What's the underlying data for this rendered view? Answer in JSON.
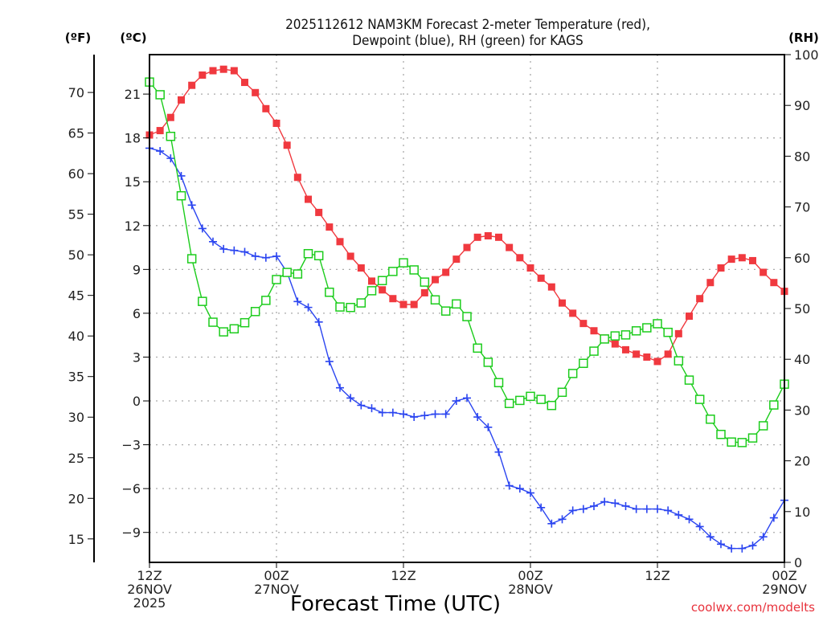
{
  "chart_data": {
    "type": "line",
    "title_line1": "2025112612 NAM3KM Forecast 2-meter Temperature (red),",
    "title_line2": "Dewpoint (blue), RH (green) for KAGS",
    "xlabel": "Forecast Time (UTC)",
    "credit": "coolwx.com/modelts",
    "unit_labels": {
      "fahrenheit": "(ºF)",
      "celsius": "(ºC)",
      "rh": "(RH)"
    },
    "x_range_hours": [
      0,
      60
    ],
    "x_ticks": [
      {
        "hour": 0,
        "lines": [
          "12Z",
          "26NOV",
          "2025"
        ]
      },
      {
        "hour": 12,
        "lines": [
          "00Z",
          "27NOV"
        ]
      },
      {
        "hour": 24,
        "lines": [
          "12Z"
        ]
      },
      {
        "hour": 36,
        "lines": [
          "00Z",
          "28NOV"
        ]
      },
      {
        "hour": 48,
        "lines": [
          "12Z"
        ]
      },
      {
        "hour": 60,
        "lines": [
          "00Z",
          "29NOV"
        ]
      }
    ],
    "celsius_axis": {
      "range": [
        -11.05,
        23.7
      ],
      "ticks": [
        -9,
        -6,
        -3,
        0,
        3,
        6,
        9,
        12,
        15,
        18,
        21
      ]
    },
    "fahrenheit_axis": {
      "ticks": [
        15,
        20,
        25,
        30,
        35,
        40,
        45,
        50,
        55,
        60,
        65,
        70
      ]
    },
    "rh_axis": {
      "range": [
        0,
        100
      ],
      "ticks": [
        0,
        10,
        20,
        30,
        40,
        50,
        60,
        70,
        80,
        90,
        100
      ]
    },
    "grid": true,
    "series": [
      {
        "name": "Temperature",
        "unit": "C",
        "axis": "celsius",
        "color": "#f0393f",
        "marker": "filled-square",
        "values": [
          18.2,
          18.5,
          19.4,
          20.6,
          21.6,
          22.3,
          22.6,
          22.7,
          22.6,
          21.8,
          21.1,
          20.0,
          19.0,
          17.5,
          15.3,
          13.8,
          12.9,
          11.9,
          10.9,
          9.9,
          9.1,
          8.2,
          7.6,
          7.0,
          6.6,
          6.6,
          7.4,
          8.3,
          8.8,
          9.7,
          10.5,
          11.2,
          11.3,
          11.2,
          10.5,
          9.8,
          9.1,
          8.4,
          7.8,
          6.7,
          6.0,
          5.3,
          4.8,
          4.3,
          3.9,
          3.5,
          3.2,
          3.0,
          2.7,
          3.2,
          4.6,
          5.8,
          7.0,
          8.1,
          9.1,
          9.7,
          9.8,
          9.6,
          8.8,
          8.1,
          7.5
        ]
      },
      {
        "name": "Dewpoint",
        "unit": "C",
        "axis": "celsius",
        "color": "#2b45f0",
        "marker": "plus",
        "values": [
          17.3,
          17.1,
          16.6,
          15.4,
          13.4,
          11.8,
          10.9,
          10.4,
          10.3,
          10.2,
          9.9,
          9.8,
          9.9,
          8.8,
          6.8,
          6.4,
          5.4,
          2.7,
          0.9,
          0.2,
          -0.3,
          -0.5,
          -0.8,
          -0.8,
          -0.9,
          -1.1,
          -1.0,
          -0.9,
          -0.9,
          0.0,
          0.2,
          -1.1,
          -1.8,
          -3.5,
          -5.8,
          -6.0,
          -6.3,
          -7.3,
          -8.4,
          -8.1,
          -7.5,
          -7.4,
          -7.2,
          -6.9,
          -7.0,
          -7.2,
          -7.4,
          -7.4,
          -7.4,
          -7.5,
          -7.8,
          -8.1,
          -8.6,
          -9.3,
          -9.8,
          -10.1,
          -10.1,
          -9.9,
          -9.3,
          -8.0,
          -6.8
        ]
      },
      {
        "name": "RH",
        "unit": "%",
        "axis": "rh",
        "color": "#1ccc1c",
        "marker": "open-square",
        "values": [
          94.6,
          92.1,
          83.9,
          72.2,
          59.8,
          51.4,
          47.3,
          45.4,
          46.0,
          47.2,
          49.4,
          51.6,
          55.7,
          57.1,
          56.8,
          60.8,
          60.4,
          53.2,
          50.3,
          50.2,
          51.1,
          53.5,
          55.5,
          57.3,
          59.0,
          57.6,
          55.2,
          51.7,
          49.5,
          50.9,
          48.4,
          42.2,
          39.4,
          35.4,
          31.3,
          31.9,
          32.7,
          32.1,
          30.9,
          33.5,
          37.2,
          39.2,
          41.6,
          44.0,
          44.6,
          44.8,
          45.6,
          46.2,
          47.0,
          45.3,
          39.7,
          35.9,
          32.1,
          28.2,
          25.2,
          23.7,
          23.6,
          24.5,
          26.9,
          31.0,
          35.1
        ]
      }
    ]
  }
}
